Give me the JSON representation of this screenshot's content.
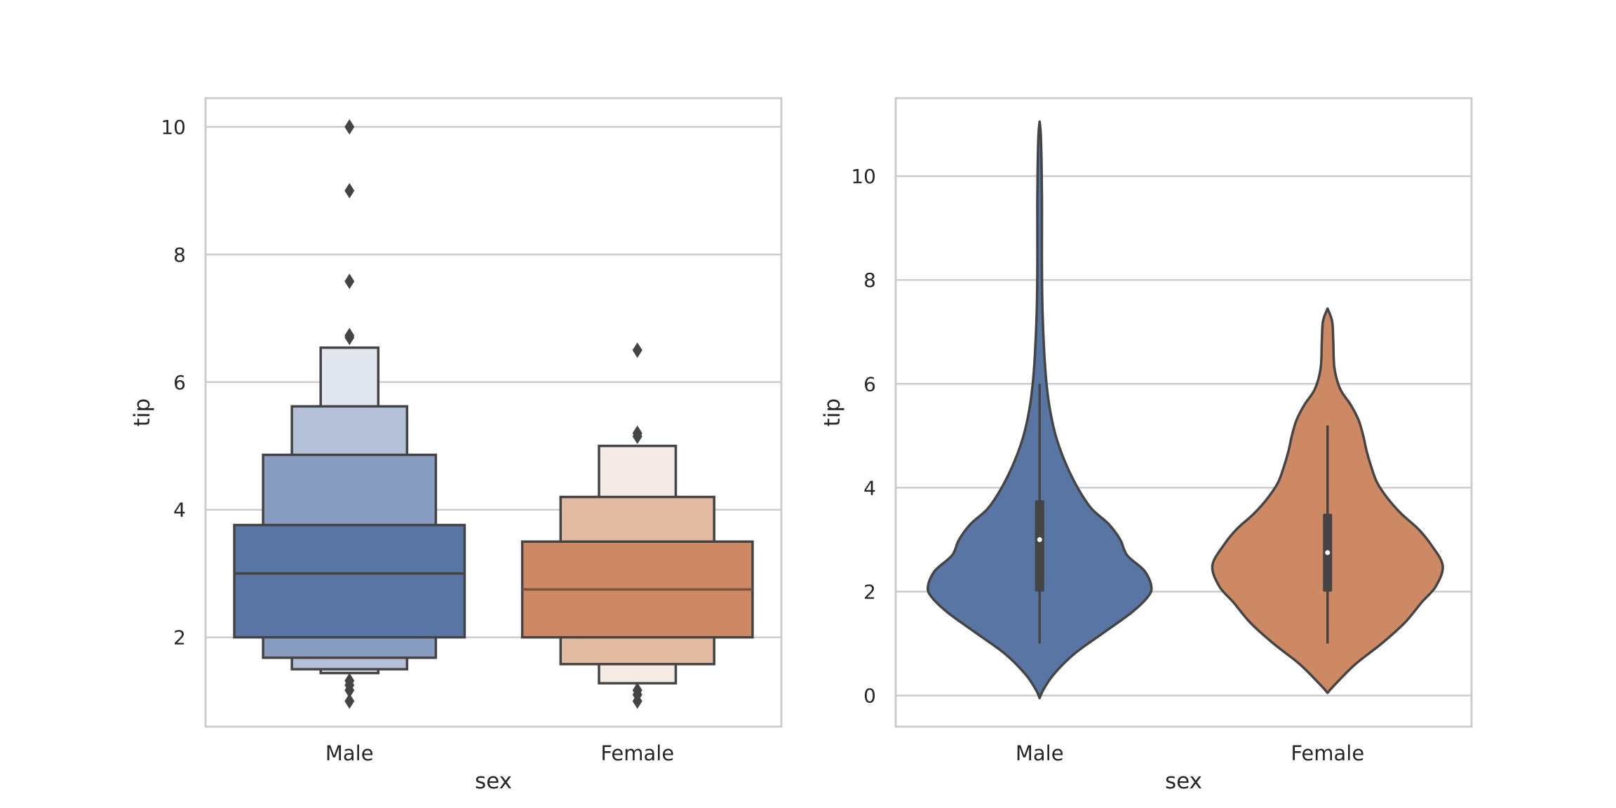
{
  "chart_data": [
    {
      "type": "boxen",
      "xlabel": "sex",
      "ylabel": "tip",
      "categories": [
        "Male",
        "Female"
      ],
      "ylim": [
        0.6,
        10.45
      ],
      "yticks": [
        2,
        4,
        6,
        8,
        10
      ],
      "grid": "y",
      "colors": [
        "#5975a4",
        "#cc8963"
      ],
      "series": [
        {
          "category": "Male",
          "median": 3.0,
          "boxes": [
            {
              "lo": 2.0,
              "hi": 3.76,
              "color": "#5975a4"
            },
            {
              "lo": 1.68,
              "hi": 4.86,
              "color": "#889dc0"
            },
            {
              "lo": 1.5,
              "hi": 5.62,
              "color": "#b5c1d9"
            },
            {
              "lo": 1.44,
              "hi": 6.54,
              "color": "#e1e6ef"
            }
          ],
          "outliers": [
            1.0,
            1.17,
            1.25,
            1.32,
            6.7,
            6.73,
            7.58,
            9.0,
            10.0
          ]
        },
        {
          "category": "Female",
          "median": 2.75,
          "boxes": [
            {
              "lo": 2.0,
              "hi": 3.5,
              "color": "#cc8963"
            },
            {
              "lo": 1.58,
              "hi": 4.2,
              "color": "#e2b9a1"
            },
            {
              "lo": 1.28,
              "hi": 5.0,
              "color": "#f5ebe6"
            }
          ],
          "outliers": [
            1.0,
            1.1,
            1.17,
            5.15,
            5.2,
            6.5
          ]
        }
      ]
    },
    {
      "type": "violin",
      "xlabel": "sex",
      "ylabel": "tip",
      "categories": [
        "Male",
        "Female"
      ],
      "ylim": [
        -0.6,
        11.5
      ],
      "yticks": [
        0,
        2,
        4,
        6,
        8,
        10
      ],
      "grid": "y",
      "colors": [
        "#5975a4",
        "#cc8963"
      ],
      "series": [
        {
          "category": "Male",
          "color": "#5975a4",
          "q1": 2.0,
          "median": 3.0,
          "q3": 3.76,
          "whisker_low": 1.0,
          "whisker_high": 6.0,
          "density": [
            [
              -0.05,
              0.0
            ],
            [
              0.1,
              0.03
            ],
            [
              0.4,
              0.12
            ],
            [
              0.8,
              0.3
            ],
            [
              1.2,
              0.55
            ],
            [
              1.6,
              0.8
            ],
            [
              1.9,
              0.94
            ],
            [
              2.1,
              0.97
            ],
            [
              2.4,
              0.91
            ],
            [
              2.7,
              0.76
            ],
            [
              3.0,
              0.7
            ],
            [
              3.3,
              0.6
            ],
            [
              3.6,
              0.45
            ],
            [
              4.0,
              0.33
            ],
            [
              4.5,
              0.22
            ],
            [
              5.0,
              0.14
            ],
            [
              5.5,
              0.09
            ],
            [
              6.0,
              0.06
            ],
            [
              6.6,
              0.04
            ],
            [
              7.4,
              0.025
            ],
            [
              8.2,
              0.02
            ],
            [
              9.0,
              0.02
            ],
            [
              9.6,
              0.02
            ],
            [
              10.2,
              0.017
            ],
            [
              10.8,
              0.01
            ],
            [
              11.05,
              0.0
            ]
          ]
        },
        {
          "category": "Female",
          "color": "#cc8963",
          "q1": 2.0,
          "median": 2.75,
          "q3": 3.5,
          "whisker_low": 1.0,
          "whisker_high": 5.2,
          "density": [
            [
              0.05,
              0.0
            ],
            [
              0.2,
              0.06
            ],
            [
              0.6,
              0.24
            ],
            [
              1.0,
              0.47
            ],
            [
              1.4,
              0.67
            ],
            [
              1.8,
              0.82
            ],
            [
              2.1,
              0.94
            ],
            [
              2.5,
              1.0
            ],
            [
              2.9,
              0.9
            ],
            [
              3.2,
              0.79
            ],
            [
              3.5,
              0.64
            ],
            [
              3.8,
              0.52
            ],
            [
              4.1,
              0.43
            ],
            [
              4.4,
              0.38
            ],
            [
              4.7,
              0.34
            ],
            [
              5.0,
              0.31
            ],
            [
              5.3,
              0.27
            ],
            [
              5.6,
              0.2
            ],
            [
              5.9,
              0.11
            ],
            [
              6.3,
              0.06
            ],
            [
              6.8,
              0.05
            ],
            [
              7.2,
              0.04
            ],
            [
              7.45,
              0.0
            ]
          ]
        }
      ]
    }
  ]
}
